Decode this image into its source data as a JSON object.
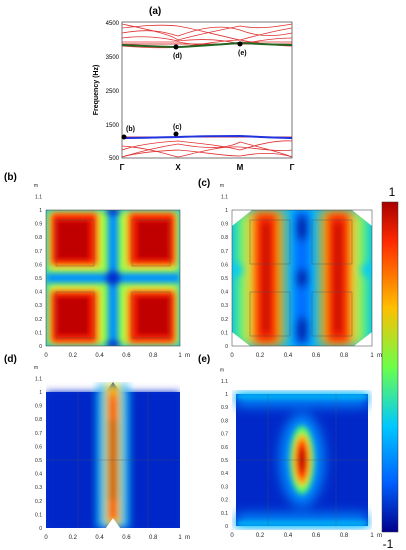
{
  "figure": {
    "panels": {
      "a": "(a)",
      "b": "(b)",
      "c": "(c)",
      "d": "(d)",
      "e": "(e)"
    },
    "colorbar": {
      "max_label": "1",
      "min_label": "-1"
    }
  },
  "chart_data": [
    {
      "type": "line",
      "panel": "(a)",
      "ylabel": "Frequency (Hz)",
      "yticks": [
        "4500",
        "3500",
        "2500",
        "1500",
        "500"
      ],
      "ylim": [
        500,
        4500
      ],
      "xticks": [
        "Γ",
        "X",
        "M",
        "Γ"
      ],
      "series": [
        {
          "color": "#2233dd",
          "kind": "flat-band",
          "points": [
            [
              0,
              1095
            ],
            [
              1,
              1105
            ],
            [
              2,
              1110
            ],
            [
              3,
              1095
            ]
          ]
        },
        {
          "color": "#226622",
          "kind": "flat-band",
          "points": [
            [
              0,
              3830
            ],
            [
              1,
              3800
            ],
            [
              2,
              3900
            ],
            [
              3,
              3830
            ]
          ]
        }
      ],
      "annotations": [
        {
          "label": "(b)",
          "x": 0,
          "y": 1095
        },
        {
          "label": "(c)",
          "x": 1,
          "y": 1150
        },
        {
          "label": "(d)",
          "x": 1,
          "y": 3780
        },
        {
          "label": "(e)",
          "x": 2,
          "y": 3880
        }
      ]
    },
    {
      "type": "heatmap",
      "panels": [
        "(b)",
        "(c)",
        "(d)",
        "(e)"
      ],
      "xticks": [
        "0",
        "0.2",
        "0.4",
        "0.6",
        "0.8",
        "1"
      ],
      "x_unit": "m",
      "yticks": [
        "0",
        "0.1",
        "0.2",
        "0.3",
        "0.4",
        "0.5",
        "0.6",
        "0.7",
        "0.8",
        "0.9",
        "1",
        "1.1"
      ],
      "y_unit": "m",
      "range": [
        -1,
        1
      ]
    }
  ]
}
